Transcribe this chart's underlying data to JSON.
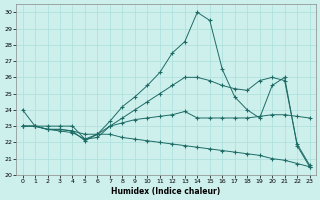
{
  "xlabel": "Humidex (Indice chaleur)",
  "xlim": [
    0,
    23
  ],
  "ylim": [
    20,
    30.5
  ],
  "xticks": [
    0,
    1,
    2,
    3,
    4,
    5,
    6,
    7,
    8,
    9,
    10,
    11,
    12,
    13,
    14,
    15,
    16,
    17,
    18,
    19,
    20,
    21,
    22,
    23
  ],
  "yticks": [
    20,
    21,
    22,
    23,
    24,
    25,
    26,
    27,
    28,
    29,
    30
  ],
  "bg_color": "#cef0ed",
  "grid_color": "#aadedb",
  "line_color": "#1d6b65",
  "line1_x": [
    0,
    1,
    2,
    3,
    4,
    5,
    6,
    7,
    8,
    9,
    10,
    11,
    12,
    13,
    14,
    15,
    16,
    17,
    18,
    19,
    20,
    21,
    22,
    23
  ],
  "line1_y": [
    24,
    23,
    23,
    23,
    23,
    22.2,
    22.5,
    23.3,
    24.2,
    24.8,
    25.5,
    26.3,
    27.5,
    28.2,
    30,
    29.5,
    26.5,
    24.8,
    24.0,
    23.5,
    25.5,
    26.0,
    21.8,
    20.5
  ],
  "line2_x": [
    0,
    1,
    2,
    3,
    4,
    5,
    6,
    7,
    8,
    9,
    10,
    11,
    12,
    13,
    14,
    15,
    16,
    17,
    18,
    19,
    20,
    21,
    22,
    23
  ],
  "line2_y": [
    23,
    23,
    22.8,
    22.8,
    22.7,
    22.5,
    22.5,
    23.0,
    23.2,
    23.4,
    23.5,
    23.6,
    23.7,
    23.9,
    23.5,
    23.5,
    23.5,
    23.5,
    23.5,
    23.6,
    23.7,
    23.7,
    23.6,
    23.5
  ],
  "line3_x": [
    0,
    1,
    2,
    3,
    4,
    5,
    6,
    7,
    8,
    9,
    10,
    11,
    12,
    13,
    14,
    15,
    16,
    17,
    18,
    19,
    20,
    21,
    22,
    23
  ],
  "line3_y": [
    23,
    23,
    22.8,
    22.7,
    22.6,
    22.2,
    22.3,
    23.0,
    23.5,
    24.0,
    24.5,
    25.0,
    25.5,
    26.0,
    26.0,
    25.8,
    25.5,
    25.3,
    25.2,
    25.8,
    26.0,
    25.8,
    21.9,
    20.6
  ],
  "line4_x": [
    0,
    1,
    2,
    3,
    4,
    5,
    6,
    7,
    8,
    9,
    10,
    11,
    12,
    13,
    14,
    15,
    16,
    17,
    18,
    19,
    20,
    21,
    22,
    23
  ],
  "line4_y": [
    23.0,
    23.0,
    22.8,
    22.8,
    22.7,
    22.1,
    22.5,
    22.5,
    22.3,
    22.2,
    22.1,
    22.0,
    21.9,
    21.8,
    21.7,
    21.6,
    21.5,
    21.4,
    21.3,
    21.2,
    21.0,
    20.9,
    20.7,
    20.5
  ]
}
